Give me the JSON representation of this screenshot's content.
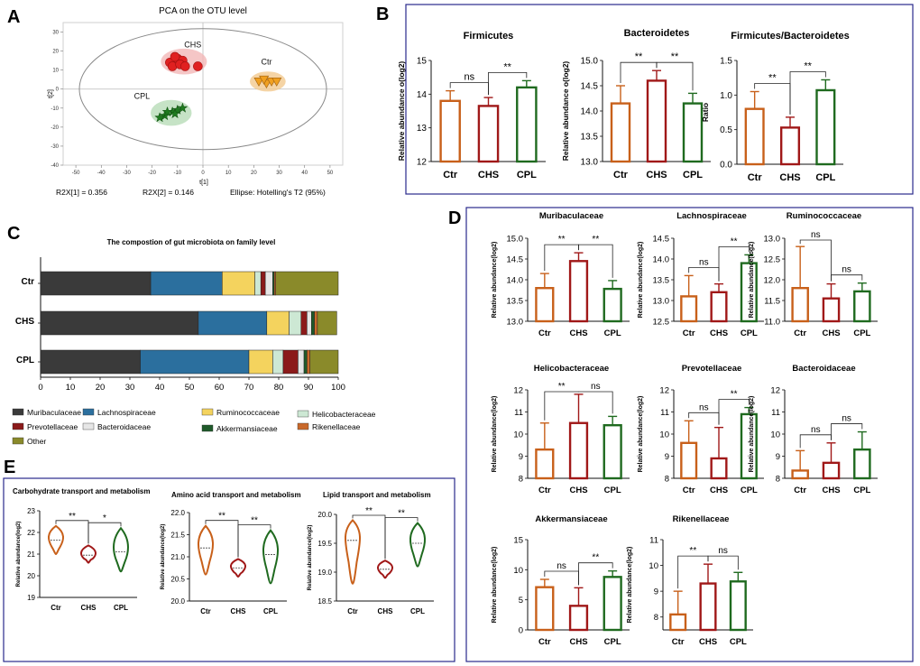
{
  "colors": {
    "ctr": "#c8601a",
    "chs": "#a01818",
    "cpl": "#1f6a1f",
    "frame": "#2a2a8c",
    "ctr_fill": "#f3c98e",
    "chs_fill": "#f2b8b8",
    "cpl_fill": "#b8dcb8"
  },
  "panel_letters": {
    "a": "A",
    "b": "B",
    "c": "C",
    "d": "D",
    "e": "E"
  },
  "pca": {
    "title": "PCA on the OTU level",
    "xlabel": "t[1]",
    "ylabel": "t[2]",
    "xticks": [
      "-50",
      "-40",
      "-30",
      "-20",
      "-10",
      "0",
      "10",
      "20",
      "30",
      "40",
      "50"
    ],
    "yticks": [
      "30",
      "20",
      "10",
      "0",
      "-10",
      "-20",
      "-30",
      "-40"
    ],
    "groups": [
      {
        "name": "CHS",
        "points": [
          [
            -13,
            14
          ],
          [
            -10,
            16
          ],
          [
            -8,
            15
          ],
          [
            -12,
            12
          ],
          [
            -9,
            13
          ],
          [
            -11,
            17
          ],
          [
            -7,
            12
          ],
          [
            -2,
            12
          ]
        ]
      },
      {
        "name": "Ctr",
        "points": [
          [
            22,
            4
          ],
          [
            25,
            3
          ],
          [
            27,
            4
          ],
          [
            24,
            5
          ],
          [
            29,
            4
          ]
        ]
      },
      {
        "name": "CPL",
        "points": [
          [
            -15,
            -14
          ],
          [
            -12,
            -12
          ],
          [
            -10,
            -11
          ],
          [
            -14,
            -12
          ],
          [
            -11,
            -13
          ],
          [
            -8,
            -10
          ],
          [
            -17,
            -15
          ]
        ]
      }
    ],
    "footer": {
      "r2x1": "R2X[1] = 0.356",
      "r2x2": "R2X[2] = 0.146",
      "ellipse": "Ellipse: Hotelling's T2 (95%)"
    }
  },
  "chart_data": [
    {
      "panel": "B",
      "type": "bar",
      "title": "Firmicutes",
      "ylabel": "Relative abundance o(log2)",
      "categories": [
        "Ctr",
        "CHS",
        "CPL"
      ],
      "values": [
        13.8,
        13.65,
        14.2
      ],
      "errors": [
        0.3,
        0.25,
        0.2
      ],
      "ylim": [
        12,
        15
      ],
      "yticks": [
        "12",
        "13",
        "14",
        "15"
      ],
      "sig": [
        {
          "from": 0,
          "to": 1,
          "label": "ns"
        },
        {
          "from": 1,
          "to": 2,
          "label": "**"
        }
      ]
    },
    {
      "panel": "B",
      "type": "bar",
      "title": "Bacteroidetes",
      "ylabel": "Relative abundance o(log2)",
      "categories": [
        "Ctr",
        "CHS",
        "CPL"
      ],
      "values": [
        14.15,
        14.6,
        14.15
      ],
      "errors": [
        0.35,
        0.2,
        0.2
      ],
      "ylim": [
        13,
        15
      ],
      "yticks": [
        "13.0",
        "13.5",
        "14.0",
        "14.5",
        "15.0"
      ],
      "sig": [
        {
          "from": 0,
          "to": 1,
          "label": "**"
        },
        {
          "from": 1,
          "to": 2,
          "label": "**"
        }
      ]
    },
    {
      "panel": "B",
      "type": "bar",
      "title": "Firmicutes/Bacteroidetes",
      "ylabel": "Ratio",
      "categories": [
        "Ctr",
        "CHS",
        "CPL"
      ],
      "values": [
        0.8,
        0.53,
        1.07
      ],
      "errors": [
        0.25,
        0.15,
        0.15
      ],
      "ylim": [
        0,
        1.5
      ],
      "yticks": [
        "0.0",
        "0.5",
        "1.0",
        "1.5"
      ],
      "sig": [
        {
          "from": 0,
          "to": 1,
          "label": "**"
        },
        {
          "from": 1,
          "to": 2,
          "label": "**"
        }
      ]
    },
    {
      "panel": "C",
      "type": "stacked-bar",
      "title": "The compostion of gut microbiota on family level",
      "categories": [
        "Ctr",
        "CHS",
        "CPL"
      ],
      "xticks": [
        "0",
        "10",
        "20",
        "30",
        "40",
        "50",
        "60",
        "70",
        "80",
        "90",
        "100"
      ],
      "series": [
        {
          "name": "Muribaculaceae",
          "color": "#3a3a3a",
          "values": [
            37,
            53,
            33.5
          ]
        },
        {
          "name": "Lachnospiraceae",
          "color": "#2b6f9e",
          "values": [
            24,
            23,
            36.5
          ]
        },
        {
          "name": "Ruminococcaceae",
          "color": "#f4d35e",
          "values": [
            11,
            7.5,
            8
          ]
        },
        {
          "name": "Helicobacteraceae",
          "color": "#cde8d4",
          "values": [
            2,
            4,
            3.5
          ]
        },
        {
          "name": "Prevotellaceae",
          "color": "#8b1a1a",
          "values": [
            1.5,
            2,
            5
          ]
        },
        {
          "name": "Bacteroidaceae",
          "color": "#e6e6e6",
          "values": [
            2.5,
            1.5,
            2
          ]
        },
        {
          "name": "Akkermansiaceae",
          "color": "#1f5a2a",
          "values": [
            0.5,
            1,
            1
          ]
        },
        {
          "name": "Rikenellaceae",
          "color": "#c9692a",
          "values": [
            0.5,
            1,
            1
          ]
        },
        {
          "name": "Other",
          "color": "#8a8a2a",
          "values": [
            21,
            6.5,
            9.5
          ]
        }
      ],
      "legend_order": [
        "Muribaculaceae",
        "Lachnospiraceae",
        "Ruminococcaceae",
        "Helicobacteraceae",
        "Prevotellaceae",
        "Bacteroidaceae",
        "Akkermansiaceae",
        "Rikenellaceae",
        "Other"
      ]
    },
    {
      "panel": "D",
      "type": "bar",
      "title": "Muribaculaceae",
      "ylabel": "Relative abundance(log2)",
      "categories": [
        "Ctr",
        "CHS",
        "CPL"
      ],
      "values": [
        13.8,
        14.45,
        13.78
      ],
      "errors": [
        0.35,
        0.2,
        0.2
      ],
      "ylim": [
        13,
        15
      ],
      "yticks": [
        "13.0",
        "13.5",
        "14.0",
        "14.5",
        "15.0"
      ],
      "sig": [
        {
          "from": 0,
          "to": 1,
          "label": "**"
        },
        {
          "from": 1,
          "to": 2,
          "label": "**"
        }
      ]
    },
    {
      "panel": "D",
      "type": "bar",
      "title": "Lachnospiraceae",
      "ylabel": "Relative abundance(log2)",
      "categories": [
        "Ctr",
        "CHS",
        "CPL"
      ],
      "values": [
        13.1,
        13.2,
        13.9
      ],
      "errors": [
        0.5,
        0.2,
        0.2
      ],
      "ylim": [
        12.5,
        14.5
      ],
      "yticks": [
        "12.5",
        "13.0",
        "13.5",
        "14.0",
        "14.5"
      ],
      "sig": [
        {
          "from": 0,
          "to": 1,
          "label": "ns"
        },
        {
          "from": 1,
          "to": 2,
          "label": "**"
        }
      ]
    },
    {
      "panel": "D",
      "type": "bar",
      "title": "Ruminococcaceae",
      "ylabel": "Relative abundance(log2)",
      "categories": [
        "Ctr",
        "CHS",
        "CPL"
      ],
      "values": [
        11.8,
        11.55,
        11.72
      ],
      "errors": [
        1.0,
        0.35,
        0.2
      ],
      "ylim": [
        11,
        13
      ],
      "yticks": [
        "11.0",
        "11.5",
        "12.0",
        "12.5",
        "13.0"
      ],
      "sig": [
        {
          "from": 0,
          "to": 1,
          "label": "ns"
        },
        {
          "from": 1,
          "to": 2,
          "label": "ns"
        }
      ]
    },
    {
      "panel": "D",
      "type": "bar",
      "title": "Helicobacteraceae",
      "ylabel": "Relative abundance(log2)",
      "categories": [
        "Ctr",
        "CHS",
        "CPL"
      ],
      "values": [
        9.3,
        10.5,
        10.4
      ],
      "errors": [
        1.2,
        1.3,
        0.4
      ],
      "ylim": [
        8,
        12
      ],
      "yticks": [
        "8",
        "9",
        "10",
        "11",
        "12"
      ],
      "sig": [
        {
          "from": 0,
          "to": 1,
          "label": "**"
        },
        {
          "from": 1,
          "to": 2,
          "label": "ns"
        }
      ]
    },
    {
      "panel": "D",
      "type": "bar",
      "title": "Prevotellaceae",
      "ylabel": "Relative abundance(log2)",
      "categories": [
        "Ctr",
        "CHS",
        "CPL"
      ],
      "values": [
        9.6,
        8.9,
        10.9
      ],
      "errors": [
        1.0,
        1.4,
        0.3
      ],
      "ylim": [
        8,
        12
      ],
      "yticks": [
        "8",
        "9",
        "10",
        "11",
        "12"
      ],
      "sig": [
        {
          "from": 0,
          "to": 1,
          "label": "ns"
        },
        {
          "from": 1,
          "to": 2,
          "label": "**"
        }
      ]
    },
    {
      "panel": "D",
      "type": "bar",
      "title": "Bacteroidaceae",
      "ylabel": "Relative abundance(log2)",
      "categories": [
        "Ctr",
        "CHS",
        "CPL"
      ],
      "values": [
        8.35,
        8.7,
        9.3
      ],
      "errors": [
        0.9,
        0.9,
        0.8
      ],
      "ylim": [
        8,
        12
      ],
      "yticks": [
        "8",
        "9",
        "10",
        "11",
        "12"
      ],
      "sig": [
        {
          "from": 0,
          "to": 1,
          "label": "ns"
        },
        {
          "from": 1,
          "to": 2,
          "label": "ns"
        }
      ]
    },
    {
      "panel": "D",
      "type": "bar",
      "title": "Akkermansiaceae",
      "ylabel": "Relative abundance(log2)",
      "categories": [
        "Ctr",
        "CHS",
        "CPL"
      ],
      "values": [
        7.1,
        4.0,
        8.8
      ],
      "errors": [
        1.3,
        3.0,
        1.0
      ],
      "ylim": [
        0,
        15
      ],
      "yticks": [
        "0",
        "5",
        "10",
        "15"
      ],
      "sig": [
        {
          "from": 0,
          "to": 1,
          "label": "ns"
        },
        {
          "from": 1,
          "to": 2,
          "label": "**"
        }
      ]
    },
    {
      "panel": "D",
      "type": "bar",
      "title": "Rikenellaceae",
      "ylabel": "Relative abundance(log2)",
      "categories": [
        "Ctr",
        "CHS",
        "CPL"
      ],
      "values": [
        8.1,
        9.3,
        9.38
      ],
      "errors": [
        0.9,
        0.75,
        0.35
      ],
      "ylim": [
        7.5,
        11
      ],
      "yticks": [
        "8",
        "9",
        "10",
        "11"
      ],
      "sig": [
        {
          "from": 0,
          "to": 1,
          "label": "**"
        },
        {
          "from": 1,
          "to": 2,
          "label": "ns"
        }
      ]
    },
    {
      "panel": "E",
      "type": "violin",
      "title": "Carbohydrate transport and metabolism",
      "ylabel": "Relative abundance(log2)",
      "categories": [
        "Ctr",
        "CHS",
        "CPL"
      ],
      "medians": [
        21.65,
        20.95,
        21.1
      ],
      "ranges": [
        [
          21.0,
          22.3
        ],
        [
          20.6,
          21.4
        ],
        [
          20.2,
          22.2
        ]
      ],
      "ylim": [
        19,
        23
      ],
      "yticks": [
        "19",
        "20",
        "21",
        "22",
        "23"
      ],
      "sig": [
        {
          "from": 0,
          "to": 1,
          "label": "**"
        },
        {
          "from": 1,
          "to": 2,
          "label": "*"
        }
      ]
    },
    {
      "panel": "E",
      "type": "violin",
      "title": "Amino acid transport and metabolism",
      "ylabel": "Relative abundance(log2)",
      "categories": [
        "Ctr",
        "CHS",
        "CPL"
      ],
      "medians": [
        21.2,
        20.75,
        21.05
      ],
      "ranges": [
        [
          20.6,
          21.7
        ],
        [
          20.55,
          20.95
        ],
        [
          20.4,
          21.6
        ]
      ],
      "ylim": [
        20,
        22
      ],
      "yticks": [
        "20.0",
        "20.5",
        "21.0",
        "21.5",
        "22.0"
      ],
      "sig": [
        {
          "from": 0,
          "to": 1,
          "label": "**"
        },
        {
          "from": 1,
          "to": 2,
          "label": "**"
        }
      ]
    },
    {
      "panel": "E",
      "type": "violin",
      "title": "Lipid transport and metabolism",
      "ylabel": "Relative abundance(log2)",
      "categories": [
        "Ctr",
        "CHS",
        "CPL"
      ],
      "medians": [
        19.55,
        19.05,
        19.5
      ],
      "ranges": [
        [
          18.8,
          19.9
        ],
        [
          18.9,
          19.2
        ],
        [
          19.1,
          19.85
        ]
      ],
      "ylim": [
        18.5,
        20
      ],
      "yticks": [
        "18.5",
        "19.0",
        "19.5",
        "20.0"
      ],
      "sig": [
        {
          "from": 0,
          "to": 1,
          "label": "**"
        },
        {
          "from": 1,
          "to": 2,
          "label": "**"
        }
      ]
    }
  ]
}
